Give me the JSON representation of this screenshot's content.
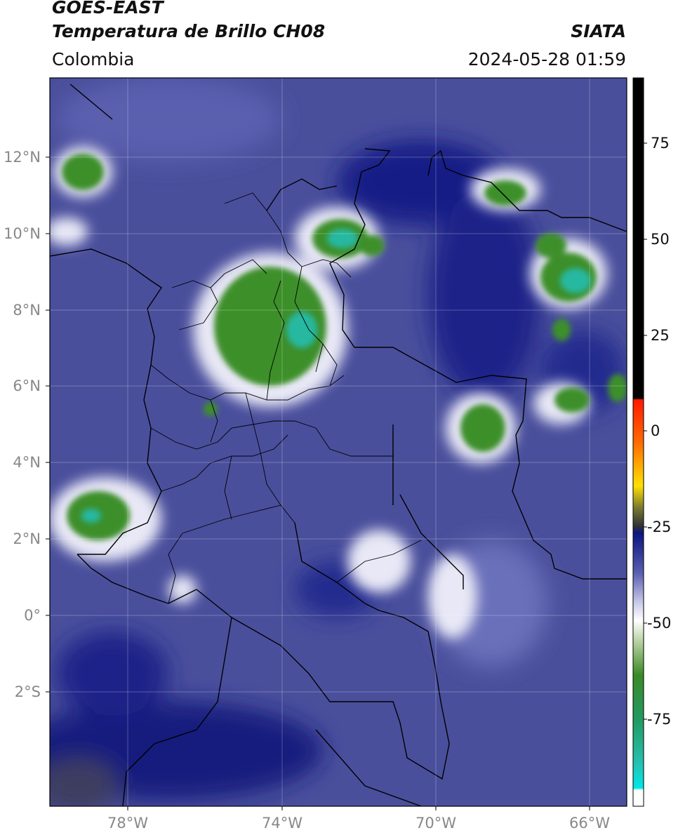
{
  "header": {
    "satellite": "GOES-EAST",
    "product": "Temperatura de Brillo CH08",
    "organization": "SIATA",
    "region": "Colombia",
    "datetime": "2024-05-28 01:59"
  },
  "axes": {
    "lon_ticks": [
      "78°W",
      "74°W",
      "70°W",
      "66°W"
    ],
    "lat_ticks": [
      "12°N",
      "10°N",
      "8°N",
      "6°N",
      "4°N",
      "2°N",
      "0°",
      "2°S"
    ]
  },
  "colorbar": {
    "ticks": [
      "75",
      "50",
      "25",
      "0",
      "-25",
      "-50",
      "-75"
    ],
    "colors": [
      "#000000",
      "#ff2200",
      "#ffd400",
      "#333333",
      "#0a1580",
      "#ffffff",
      "#2e8b22",
      "#23b89a",
      "#00e5e5"
    ]
  }
}
